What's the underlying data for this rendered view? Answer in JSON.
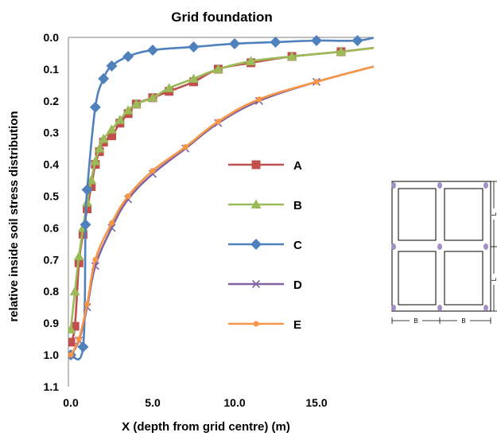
{
  "chart_data": {
    "type": "line",
    "title": "Grid foundation",
    "xlabel": "X (depth from grid centre) (m)",
    "ylabel": "relative inside soil stress distribution",
    "xlim": [
      0,
      18.5
    ],
    "ylim": [
      0,
      1.1
    ],
    "y_inverted": true,
    "x_ticks": [
      "0.0",
      "5.0",
      "10.0",
      "15.0"
    ],
    "y_ticks": [
      "0.0",
      "0.1",
      "0.2",
      "0.3",
      "0.4",
      "0.5",
      "0.6",
      "0.7",
      "0.8",
      "0.9",
      "1.0",
      "1.1"
    ],
    "grid": false,
    "legend_position": "inside-right",
    "series": [
      {
        "name": "A",
        "color": "#C0504D",
        "marker": "square",
        "x": [
          0.0,
          0.25,
          0.5,
          0.75,
          1.0,
          1.25,
          1.5,
          1.75,
          2.0,
          2.5,
          3.0,
          3.5,
          4.0,
          5.0,
          6.0,
          7.5,
          9.0,
          11.0,
          13.5,
          16.5
        ],
        "y": [
          0.96,
          0.91,
          0.71,
          0.62,
          0.54,
          0.47,
          0.4,
          0.36,
          0.33,
          0.31,
          0.27,
          0.24,
          0.21,
          0.19,
          0.17,
          0.14,
          0.1,
          0.08,
          0.06,
          0.045
        ]
      },
      {
        "name": "B",
        "color": "#9BBB59",
        "marker": "triangle",
        "x": [
          0.0,
          0.25,
          0.5,
          0.75,
          1.0,
          1.25,
          1.5,
          1.75,
          2.0,
          2.5,
          3.0,
          3.5,
          4.0,
          5.0,
          6.0,
          7.5,
          9.0,
          11.0,
          13.5,
          16.5
        ],
        "y": [
          0.92,
          0.8,
          0.69,
          0.6,
          0.52,
          0.45,
          0.39,
          0.35,
          0.32,
          0.29,
          0.26,
          0.23,
          0.21,
          0.19,
          0.16,
          0.13,
          0.1,
          0.075,
          0.06,
          0.045
        ]
      },
      {
        "name": "C",
        "color": "#4F81BD",
        "marker": "diamond",
        "x": [
          0.0,
          0.75,
          0.9,
          1.0,
          1.5,
          2.0,
          2.5,
          3.5,
          5.0,
          7.5,
          10.0,
          12.5,
          15.0,
          17.5
        ],
        "y": [
          1.0,
          0.975,
          0.59,
          0.48,
          0.22,
          0.13,
          0.09,
          0.06,
          0.04,
          0.03,
          0.02,
          0.015,
          0.01,
          0.01
        ]
      },
      {
        "name": "D",
        "color": "#8064A2",
        "marker": "x",
        "x": [
          0.0,
          0.5,
          1.0,
          1.5,
          2.5,
          3.5,
          5.0,
          7.0,
          9.0,
          11.5,
          15.0
        ],
        "y": [
          1.0,
          0.955,
          0.85,
          0.72,
          0.6,
          0.51,
          0.43,
          0.35,
          0.27,
          0.2,
          0.14
        ]
      },
      {
        "name": "E",
        "color": "#F79646",
        "marker": "circle",
        "x": [
          0.0,
          0.5,
          1.0,
          1.5,
          2.5,
          3.5,
          5.0,
          7.0,
          9.0,
          11.5,
          15.0
        ],
        "y": [
          1.0,
          0.95,
          0.84,
          0.7,
          0.585,
          0.5,
          0.42,
          0.345,
          0.265,
          0.195,
          0.14
        ]
      }
    ]
  },
  "inset": {
    "dim_b": "B",
    "dim_l": "L"
  }
}
